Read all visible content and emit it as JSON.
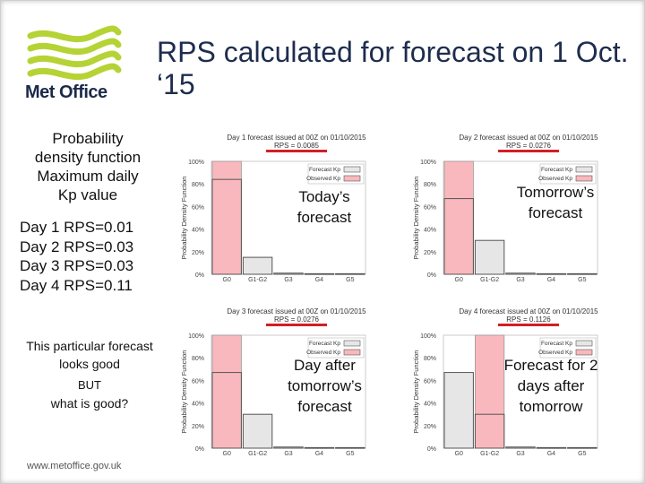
{
  "header": {
    "title": "RPS calculated for forecast on 1 Oct. ‘15",
    "logo_text": "Met Office"
  },
  "left_panel": {
    "lines": [
      "Probability",
      "density function",
      "Maximum daily",
      "Kp value"
    ],
    "rps": [
      "Day 1 RPS=0.01",
      "Day 2 RPS=0.03",
      "Day 3 RPS=0.03",
      "Day 4 RPS=0.11"
    ],
    "note_line1": "This particular forecast",
    "note_line2": "looks good",
    "note_line3": "BUT",
    "note_line4": "what is good?"
  },
  "footer": {
    "url": "www.metoffice.gov.uk"
  },
  "colors": {
    "forecast": "#e6e6e6",
    "observed": "#f9b8bd",
    "underline": "#d21f26",
    "title": "#1e2d4e",
    "logo_green": "#b5d334"
  },
  "overlays": [
    [
      "Today’s",
      "forecast"
    ],
    [
      "Tomorrow’s",
      "forecast"
    ],
    [
      "Day after",
      "tomorrow’s",
      "forecast"
    ],
    [
      "Forecast for 2",
      "days after",
      "tomorrow"
    ]
  ],
  "chart_data": [
    {
      "type": "bar",
      "title": "Day 1 forecast issued at 00Z on 01/10/2015",
      "subtitle": "RPS = 0.0085",
      "ylabel": "Probability Density Function",
      "categories": [
        "G0",
        "G1-G2",
        "G3",
        "G4",
        "G5"
      ],
      "ylim": [
        0,
        100
      ],
      "yticks": [
        "0%",
        "20%",
        "40%",
        "60%",
        "80%",
        "100%"
      ],
      "legend": [
        "Forecast Kp",
        "Observed Kp"
      ],
      "series": [
        {
          "name": "Forecast Kp",
          "values": [
            84,
            15,
            1,
            0.5,
            0.5
          ]
        },
        {
          "name": "Observed Kp",
          "values": [
            100,
            0,
            0,
            0,
            0
          ]
        }
      ]
    },
    {
      "type": "bar",
      "title": "Day 2 forecast issued at 00Z on 01/10/2015",
      "subtitle": "RPS = 0.0276",
      "ylabel": "Probability Density Function",
      "categories": [
        "G0",
        "G1-G2",
        "G3",
        "G4",
        "G5"
      ],
      "ylim": [
        0,
        100
      ],
      "yticks": [
        "0%",
        "20%",
        "40%",
        "60%",
        "80%",
        "100%"
      ],
      "legend": [
        "Forecast Kp",
        "Observed Kp"
      ],
      "series": [
        {
          "name": "Forecast Kp",
          "values": [
            67,
            30,
            1,
            0.5,
            0.5
          ]
        },
        {
          "name": "Observed Kp",
          "values": [
            100,
            0,
            0,
            0,
            0
          ]
        }
      ]
    },
    {
      "type": "bar",
      "title": "Day 3 forecast issued at 00Z on 01/10/2015",
      "subtitle": "RPS = 0.0276",
      "ylabel": "Probability Density Function",
      "categories": [
        "G0",
        "G1-G2",
        "G3",
        "G4",
        "G5"
      ],
      "ylim": [
        0,
        100
      ],
      "yticks": [
        "0%",
        "20%",
        "40%",
        "60%",
        "80%",
        "100%"
      ],
      "legend": [
        "Forecast Kp",
        "Observed Kp"
      ],
      "series": [
        {
          "name": "Forecast Kp",
          "values": [
            67,
            30,
            1,
            0.5,
            0.5
          ]
        },
        {
          "name": "Observed Kp",
          "values": [
            100,
            0,
            0,
            0,
            0
          ]
        }
      ]
    },
    {
      "type": "bar",
      "title": "Day 4 forecast issued at 00Z on 01/10/2015",
      "subtitle": "RPS = 0.1126",
      "ylabel": "Probability Density Function",
      "categories": [
        "G0",
        "G1-G2",
        "G3",
        "G4",
        "G5"
      ],
      "ylim": [
        0,
        100
      ],
      "yticks": [
        "0%",
        "20%",
        "40%",
        "60%",
        "80%",
        "100%"
      ],
      "legend": [
        "Forecast Kp",
        "Observed Kp"
      ],
      "series": [
        {
          "name": "Forecast Kp",
          "values": [
            67,
            30,
            1,
            0.5,
            0.5
          ]
        },
        {
          "name": "Observed Kp",
          "values": [
            0,
            100,
            0,
            0,
            0
          ]
        }
      ]
    }
  ]
}
